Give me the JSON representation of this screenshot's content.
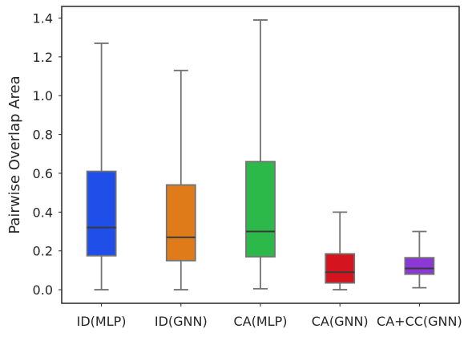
{
  "chart_data": {
    "type": "box",
    "xlabel": "",
    "ylabel": "Pairwise Overlap Area",
    "ylim": [
      -0.07,
      1.46
    ],
    "yticks": [
      0.0,
      0.2,
      0.4,
      0.6,
      0.8,
      1.0,
      1.2,
      1.4
    ],
    "ytick_labels": [
      "0.0",
      "0.2",
      "0.4",
      "0.6",
      "0.8",
      "1.0",
      "1.2",
      "1.4"
    ],
    "grid": false,
    "categories": [
      "ID(MLP)",
      "ID(GNN)",
      "CA(MLP)",
      "CA(GNN)",
      "CA+CC(GNN)"
    ],
    "boxes": [
      {
        "category": "ID(MLP)",
        "color": "#1f4ee8",
        "whisker_low": 0.0,
        "q1": 0.175,
        "median": 0.32,
        "q3": 0.61,
        "whisker_high": 1.27
      },
      {
        "category": "ID(GNN)",
        "color": "#e07b1a",
        "whisker_low": 0.0,
        "q1": 0.15,
        "median": 0.27,
        "q3": 0.54,
        "whisker_high": 1.13
      },
      {
        "category": "CA(MLP)",
        "color": "#2db84a",
        "whisker_low": 0.005,
        "q1": 0.17,
        "median": 0.3,
        "q3": 0.66,
        "whisker_high": 1.39
      },
      {
        "category": "CA(GNN)",
        "color": "#d4141e",
        "whisker_low": 0.0,
        "q1": 0.035,
        "median": 0.09,
        "q3": 0.185,
        "whisker_high": 0.4
      },
      {
        "category": "CA+CC(GNN)",
        "color": "#8b38d6",
        "whisker_low": 0.01,
        "q1": 0.08,
        "median": 0.11,
        "q3": 0.165,
        "whisker_high": 0.3
      }
    ]
  }
}
